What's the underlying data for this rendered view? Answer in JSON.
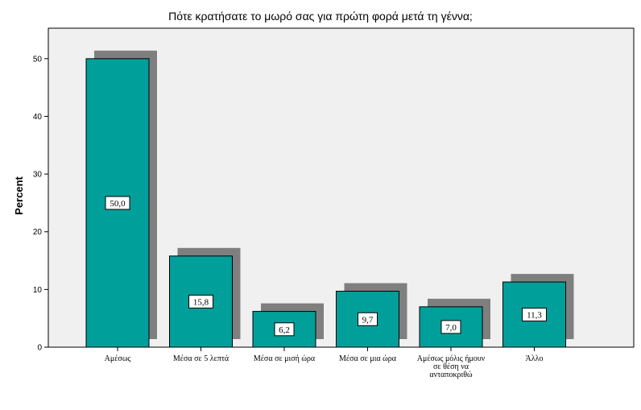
{
  "chart_data": {
    "type": "bar",
    "title": "Πότε κρατήσατε το μωρό σας για πρώτη φορά μετά τη γέννα;",
    "ylabel": "Percent",
    "xlabel": "",
    "ylim": [
      0,
      55
    ],
    "yticks": [
      0,
      10,
      20,
      30,
      40,
      50
    ],
    "categories": [
      [
        "Αμέσως"
      ],
      [
        "Μέσα σε  5 λεπτά"
      ],
      [
        "Μέσα σε μισή ώρα"
      ],
      [
        "Μέσα σε μια  ώρα"
      ],
      [
        "Αμέσως μόλις ήμουν",
        "σε θέση να",
        "ανταποκριθώ"
      ],
      [
        "Άλλο"
      ]
    ],
    "values": [
      50.0,
      15.8,
      6.2,
      9.7,
      7.0,
      11.3
    ],
    "data_labels": [
      "50,0",
      "15,8",
      "6,2",
      "9,7",
      "7,0",
      "11,3"
    ],
    "grid": false,
    "bar_color": "#009f9a",
    "shadow_color": "#7f7f7f"
  }
}
